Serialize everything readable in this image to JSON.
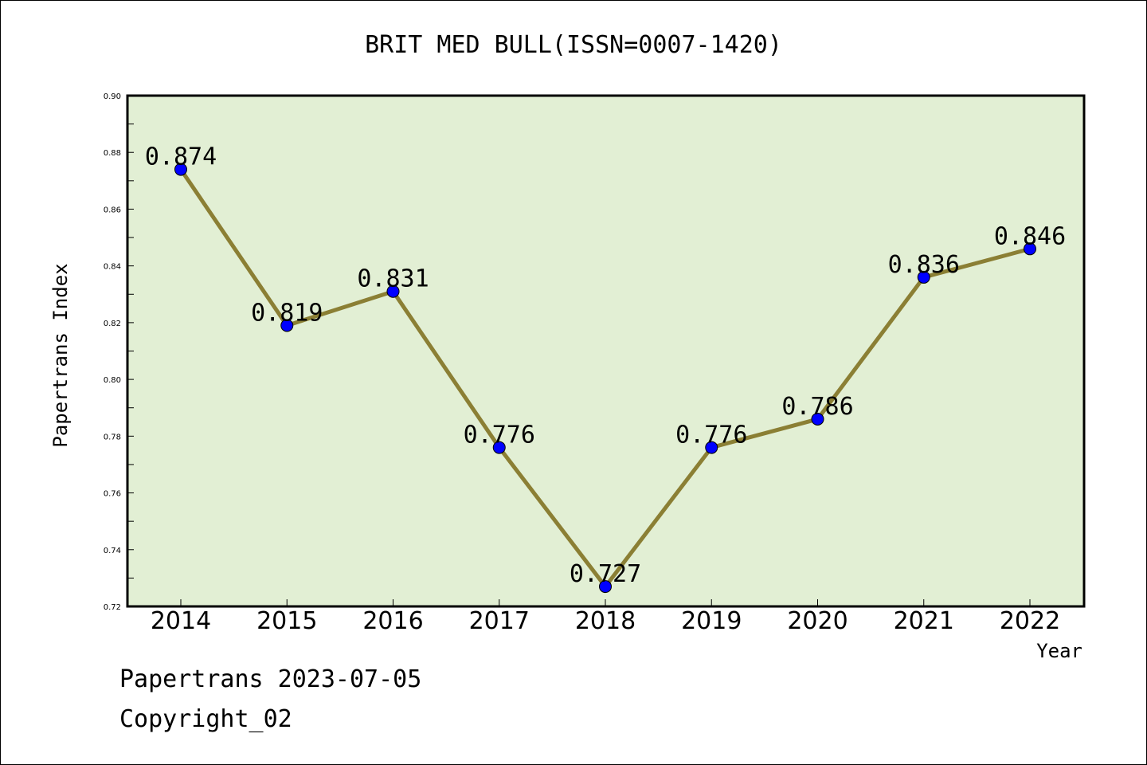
{
  "chart_data": {
    "type": "line",
    "title": "BRIT MED BULL(ISSN=0007-1420)",
    "xlabel": "Year",
    "ylabel": "Papertrans Index",
    "categories": [
      "2014",
      "2015",
      "2016",
      "2017",
      "2018",
      "2019",
      "2020",
      "2021",
      "2022"
    ],
    "values": [
      0.874,
      0.819,
      0.831,
      0.776,
      0.727,
      0.776,
      0.786,
      0.836,
      0.846
    ],
    "data_labels": [
      "0.874",
      "0.819",
      "0.831",
      "0.776",
      "0.727",
      "0.776",
      "0.786",
      "0.836",
      "0.846"
    ],
    "ylim": [
      0.72,
      0.9
    ],
    "yticks": [
      "0.72",
      "0.74",
      "0.76",
      "0.78",
      "0.80",
      "0.82",
      "0.84",
      "0.86",
      "0.88",
      "0.90"
    ],
    "grid": false,
    "colors": {
      "plot_background": "#e2efd4",
      "line": "#8b7f34",
      "marker": "#0000ff"
    }
  },
  "footer": {
    "line1": "Papertrans 2023-07-05",
    "line2": "Copyright_02"
  }
}
